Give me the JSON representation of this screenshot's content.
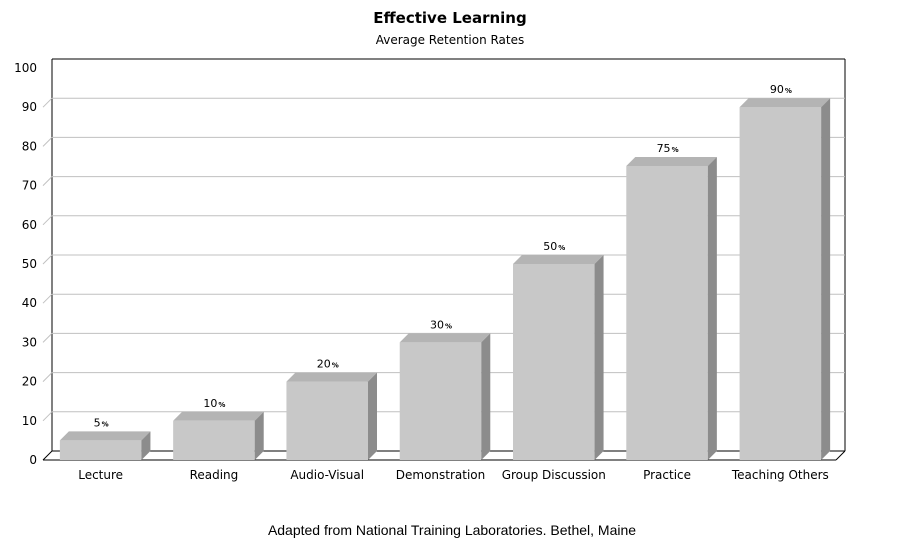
{
  "chart_data": {
    "type": "bar",
    "title": "Effective Learning",
    "subtitle": "Average Retention Rates",
    "categories": [
      "Lecture",
      "Reading",
      "Audio-Visual",
      "Demonstration",
      "Group Discussion",
      "Practice",
      "Teaching Others"
    ],
    "values": [
      5,
      10,
      20,
      30,
      50,
      75,
      90
    ],
    "value_suffix": "%",
    "ylim": [
      0,
      100
    ],
    "yticks": [
      0,
      10,
      20,
      30,
      40,
      50,
      60,
      70,
      80,
      90,
      100
    ],
    "grid": true,
    "legend": "none",
    "style": "3d",
    "bar_color": "#c8c8c8",
    "bar_top_color": "#b4b4b4",
    "bar_side_color": "#8c8c8c"
  },
  "footnote": "Adapted from National Training Laboratories. Bethel, Maine"
}
